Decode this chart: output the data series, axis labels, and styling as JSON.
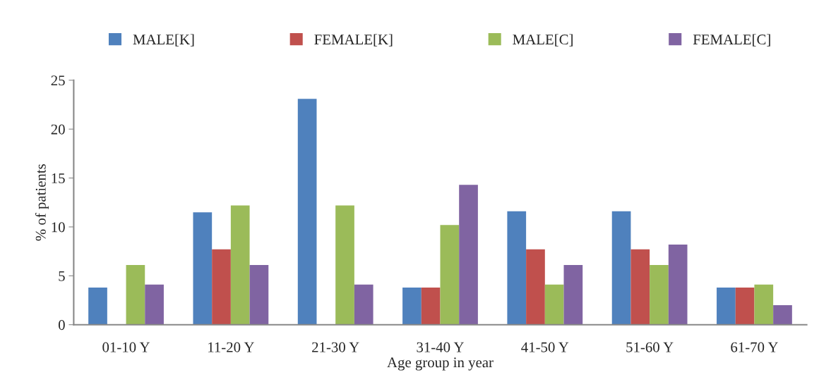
{
  "chart_data": {
    "type": "bar",
    "xlabel": "Age group in year",
    "ylabel": "% of patients",
    "categories": [
      "01-10 Y",
      "11-20 Y",
      "21-30 Y",
      "31-40 Y",
      "41-50 Y",
      "51-60 Y",
      "61-70 Y"
    ],
    "series": [
      {
        "name": "MALE[K]",
        "color": "#4f81bd",
        "values": [
          3.8,
          11.5,
          23.1,
          3.8,
          11.6,
          11.6,
          3.8
        ]
      },
      {
        "name": "FEMALE[K]",
        "color": "#c0504d",
        "values": [
          0,
          7.7,
          0,
          3.8,
          7.7,
          7.7,
          3.8
        ]
      },
      {
        "name": "MALE[C]",
        "color": "#9bbb59",
        "values": [
          6.1,
          12.2,
          12.2,
          10.2,
          4.1,
          6.1,
          4.1
        ]
      },
      {
        "name": "FEMALE[C]",
        "color": "#8064a2",
        "values": [
          4.1,
          6.1,
          4.1,
          14.3,
          6.1,
          8.2,
          2.0
        ]
      }
    ],
    "ylim": [
      0,
      25
    ],
    "yticks": [
      0,
      5,
      10,
      15,
      20,
      25
    ],
    "grid": false,
    "legend": "top"
  }
}
